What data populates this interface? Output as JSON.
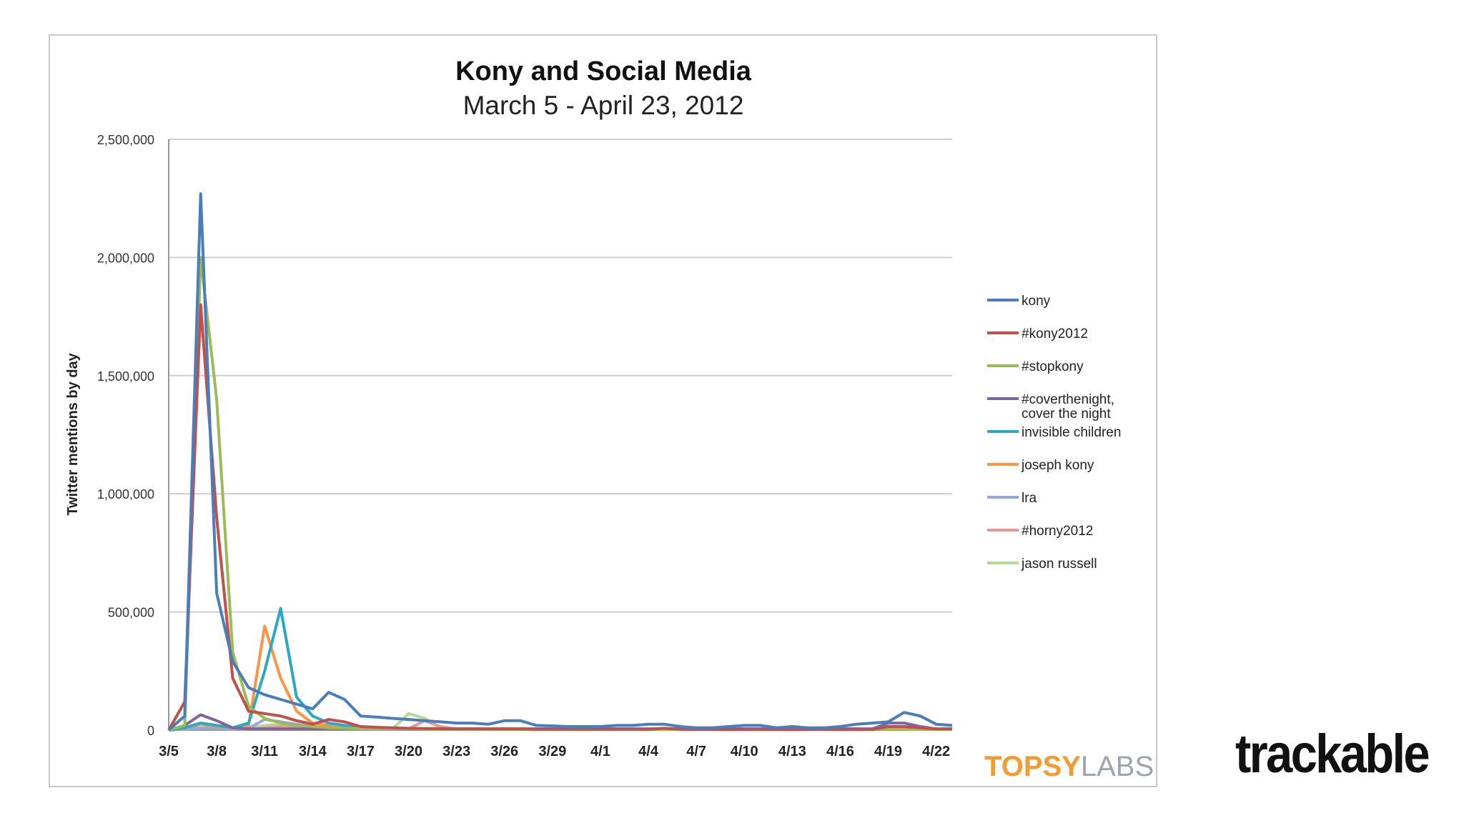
{
  "branding": {
    "topsy_brand": "TOPSY",
    "topsy_suffix": "LABS",
    "topsy_color": "#f39c31",
    "labs_color": "#9aa6b8",
    "slide_logo": "trackable"
  },
  "chart_data": {
    "type": "line",
    "title": "Kony and Social Media",
    "subtitle": "March 5 - April 23, 2012",
    "xlabel": "",
    "ylabel": "Twitter mentions by day",
    "ylim": [
      0,
      2500000
    ],
    "yticks": [
      0,
      500000,
      1000000,
      1500000,
      2000000,
      2500000
    ],
    "ytick_labels": [
      "0",
      "500,000",
      "1,000,000",
      "1,500,000",
      "2,000,000",
      "2,500,000"
    ],
    "x": [
      "3/5",
      "3/6",
      "3/7",
      "3/8",
      "3/9",
      "3/10",
      "3/11",
      "3/12",
      "3/13",
      "3/14",
      "3/15",
      "3/16",
      "3/17",
      "3/18",
      "3/19",
      "3/20",
      "3/21",
      "3/22",
      "3/23",
      "3/24",
      "3/25",
      "3/26",
      "3/27",
      "3/28",
      "3/29",
      "3/30",
      "3/31",
      "4/1",
      "4/2",
      "4/3",
      "4/4",
      "4/5",
      "4/6",
      "4/7",
      "4/8",
      "4/9",
      "4/10",
      "4/11",
      "4/12",
      "4/13",
      "4/14",
      "4/15",
      "4/16",
      "4/17",
      "4/18",
      "4/19",
      "4/20",
      "4/21",
      "4/22",
      "4/23"
    ],
    "xtick_labels": [
      "3/5",
      "3/8",
      "3/11",
      "3/14",
      "3/17",
      "3/20",
      "3/23",
      "3/26",
      "3/29",
      "4/1",
      "4/4",
      "4/7",
      "4/10",
      "4/13",
      "4/16",
      "4/19",
      "4/22"
    ],
    "grid": true,
    "legend_position": "right",
    "series": [
      {
        "name": "kony",
        "color": "#4a7ebb",
        "values": [
          0,
          60000,
          2270000,
          580000,
          290000,
          180000,
          150000,
          130000,
          110000,
          90000,
          160000,
          130000,
          60000,
          55000,
          50000,
          45000,
          40000,
          35000,
          30000,
          30000,
          25000,
          40000,
          40000,
          20000,
          18000,
          15000,
          15000,
          15000,
          20000,
          20000,
          25000,
          25000,
          15000,
          10000,
          10000,
          15000,
          20000,
          20000,
          10000,
          15000,
          10000,
          10000,
          15000,
          25000,
          30000,
          35000,
          75000,
          60000,
          25000,
          20000
        ]
      },
      {
        "name": "#kony2012",
        "color": "#c0504d",
        "values": [
          0,
          120000,
          1800000,
          900000,
          220000,
          80000,
          70000,
          60000,
          40000,
          25000,
          45000,
          35000,
          15000,
          12000,
          10000,
          8000,
          7000,
          6000,
          5000,
          5000,
          5000,
          5000,
          5000,
          4000,
          4000,
          4000,
          4000,
          4000,
          4000,
          4000,
          4000,
          8000,
          4000,
          3000,
          3000,
          3000,
          3000,
          3000,
          3000,
          3000,
          3000,
          3000,
          3000,
          3000,
          3000,
          15000,
          15000,
          10000,
          5000,
          5000
        ]
      },
      {
        "name": "#stopkony",
        "color": "#9bbb59",
        "values": [
          0,
          20000,
          2000000,
          1400000,
          330000,
          100000,
          50000,
          30000,
          20000,
          15000,
          10000,
          8000,
          6000,
          5000,
          5000,
          5000,
          4000,
          4000,
          4000,
          3000,
          3000,
          3000,
          3000,
          3000,
          3000,
          3000,
          3000,
          3000,
          3000,
          3000,
          3000,
          3000,
          3000,
          3000,
          3000,
          3000,
          3000,
          3000,
          3000,
          3000,
          3000,
          3000,
          3000,
          3000,
          3000,
          3000,
          3000,
          3000,
          3000,
          3000
        ]
      },
      {
        "name": "#coverthenight, cover the night",
        "color": "#8064a2",
        "values": [
          0,
          20000,
          65000,
          40000,
          10000,
          5000,
          5000,
          5000,
          5000,
          5000,
          5000,
          5000,
          5000,
          5000,
          5000,
          5000,
          5000,
          5000,
          5000,
          5000,
          5000,
          5000,
          5000,
          5000,
          5000,
          5000,
          5000,
          5000,
          5000,
          5000,
          5000,
          5000,
          5000,
          5000,
          5000,
          5000,
          5000,
          5000,
          5000,
          5000,
          5000,
          5000,
          5000,
          5000,
          5000,
          30000,
          30000,
          15000,
          5000,
          5000
        ]
      },
      {
        "name": "invisible children",
        "color": "#2aa8c4",
        "values": [
          0,
          10000,
          30000,
          20000,
          10000,
          30000,
          250000,
          515000,
          140000,
          60000,
          30000,
          20000,
          10000,
          8000,
          6000,
          5000,
          5000,
          4000,
          4000,
          4000,
          3000,
          3000,
          3000,
          3000,
          3000,
          3000,
          3000,
          3000,
          3000,
          3000,
          3000,
          3000,
          3000,
          3000,
          3000,
          3000,
          3000,
          3000,
          3000,
          3000,
          3000,
          3000,
          3000,
          3000,
          3000,
          3000,
          3000,
          3000,
          3000,
          3000
        ]
      },
      {
        "name": "joseph kony",
        "color": "#f79646",
        "values": [
          0,
          10000,
          25000,
          15000,
          10000,
          20000,
          440000,
          220000,
          80000,
          30000,
          20000,
          15000,
          10000,
          8000,
          6000,
          5000,
          5000,
          4000,
          4000,
          4000,
          3000,
          3000,
          3000,
          3000,
          3000,
          3000,
          3000,
          3000,
          3000,
          3000,
          3000,
          3000,
          3000,
          3000,
          3000,
          3000,
          3000,
          3000,
          3000,
          3000,
          3000,
          3000,
          3000,
          3000,
          3000,
          3000,
          3000,
          3000,
          3000,
          3000
        ]
      },
      {
        "name": "lra",
        "color": "#95a8d8",
        "values": [
          0,
          5000,
          10000,
          8000,
          5000,
          8000,
          45000,
          35000,
          25000,
          15000,
          10000,
          8000,
          6000,
          5000,
          5000,
          5000,
          5000,
          5000,
          5000,
          5000,
          5000,
          5000,
          5000,
          5000,
          5000,
          5000,
          5000,
          5000,
          5000,
          5000,
          5000,
          5000,
          5000,
          5000,
          5000,
          5000,
          5000,
          5000,
          5000,
          5000,
          5000,
          5000,
          5000,
          5000,
          5000,
          5000,
          5000,
          5000,
          5000,
          5000
        ]
      },
      {
        "name": "#horny2012",
        "color": "#e99696",
        "values": [
          0,
          5000,
          10000,
          10000,
          5000,
          5000,
          10000,
          15000,
          10000,
          8000,
          5000,
          5000,
          5000,
          5000,
          5000,
          5000,
          40000,
          15000,
          5000,
          5000,
          5000,
          5000,
          5000,
          5000,
          5000,
          5000,
          5000,
          5000,
          5000,
          5000,
          5000,
          5000,
          5000,
          5000,
          5000,
          5000,
          5000,
          5000,
          5000,
          5000,
          5000,
          5000,
          5000,
          5000,
          5000,
          5000,
          5000,
          5000,
          5000,
          5000
        ]
      },
      {
        "name": "jason russell",
        "color": "#b8d994",
        "values": [
          0,
          5000,
          10000,
          10000,
          5000,
          10000,
          20000,
          25000,
          15000,
          10000,
          8000,
          5000,
          5000,
          5000,
          5000,
          70000,
          50000,
          10000,
          5000,
          5000,
          5000,
          5000,
          5000,
          5000,
          5000,
          5000,
          5000,
          5000,
          5000,
          5000,
          5000,
          5000,
          5000,
          5000,
          5000,
          5000,
          5000,
          5000,
          5000,
          5000,
          5000,
          5000,
          5000,
          5000,
          5000,
          5000,
          5000,
          5000,
          5000,
          5000
        ]
      }
    ]
  }
}
